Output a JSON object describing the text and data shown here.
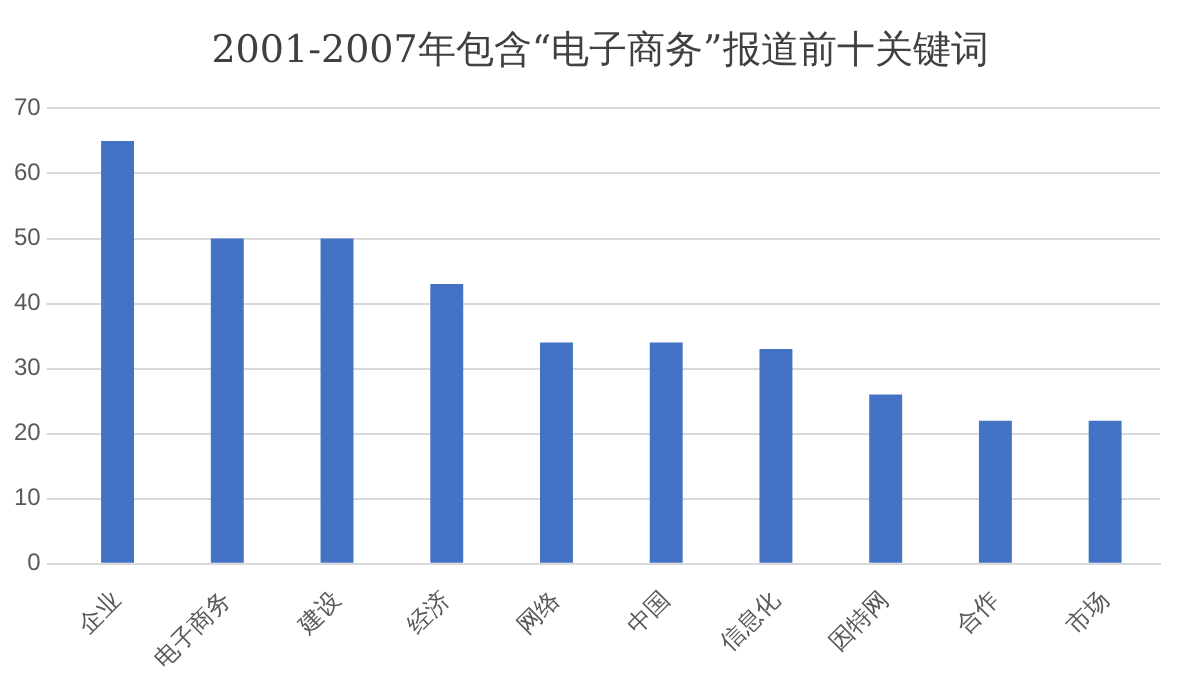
{
  "chart_data": {
    "type": "bar",
    "title": "2001-2007年包含“电子商务”报道前十关键词",
    "categories": [
      "企业",
      "电子商务",
      "建设",
      "经济",
      "网络",
      "中国",
      "信息化",
      "因特网",
      "合作",
      "市场"
    ],
    "values": [
      65,
      50,
      50,
      43,
      34,
      34,
      33,
      26,
      22,
      22
    ],
    "color": "#4472c4",
    "ylim": [
      0,
      70
    ],
    "yticks": [
      0,
      10,
      20,
      30,
      40,
      50,
      60,
      70
    ],
    "grid": "y"
  }
}
